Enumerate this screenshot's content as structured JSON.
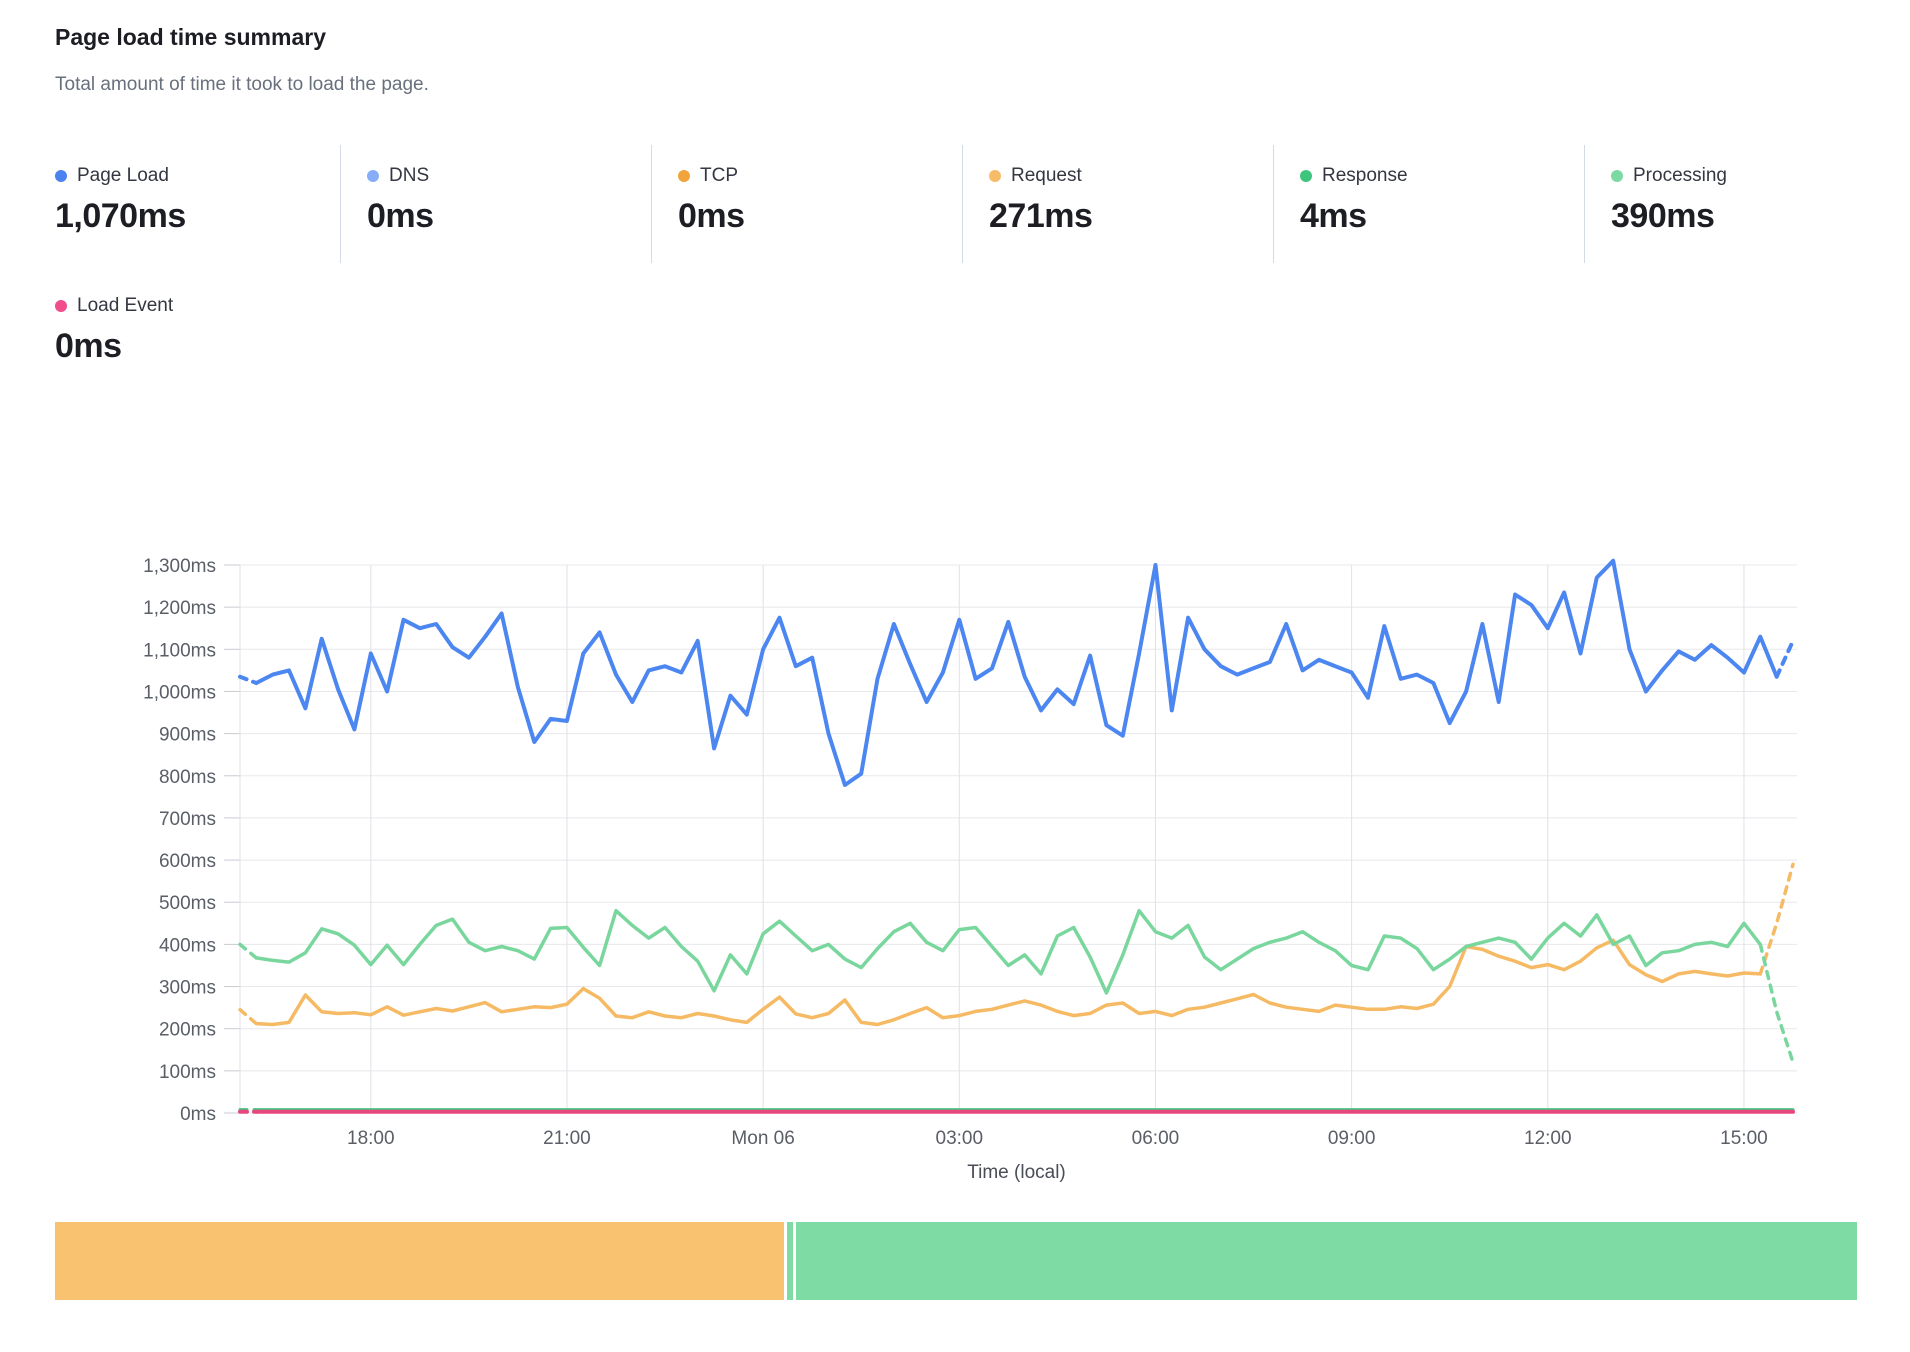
{
  "panel": {
    "title": "Page load time summary",
    "subtitle": "Total amount of time it took to load the page."
  },
  "metrics": [
    {
      "label": "Page Load",
      "value": "1,070ms",
      "color": "#4C81F0"
    },
    {
      "label": "DNS",
      "value": "0ms",
      "color": "#85AEF6"
    },
    {
      "label": "TCP",
      "value": "0ms",
      "color": "#F1A33C"
    },
    {
      "label": "Request",
      "value": "271ms",
      "color": "#F6BC68"
    },
    {
      "label": "Response",
      "value": "4ms",
      "color": "#3EC57D"
    },
    {
      "label": "Processing",
      "value": "390ms",
      "color": "#7BD9A1"
    },
    {
      "label": "Load Event",
      "value": "0ms",
      "color": "#EF4E8B"
    }
  ],
  "chart_data": {
    "type": "line",
    "title": "Page load time summary",
    "xlabel": "Time (local)",
    "ylabel": "",
    "ylim": [
      0,
      1300
    ],
    "ytick_step": 100,
    "ytick_labels": [
      "0ms",
      "100ms",
      "200ms",
      "300ms",
      "400ms",
      "500ms",
      "600ms",
      "700ms",
      "800ms",
      "900ms",
      "1,000ms",
      "1,100ms",
      "1,200ms",
      "1,300ms"
    ],
    "grid": true,
    "legend_position": "top",
    "points_interval_minutes": 15,
    "x_start_time": "Sun 16:00",
    "xticks": [
      {
        "label": "18:00",
        "index": 8
      },
      {
        "label": "21:00",
        "index": 20
      },
      {
        "label": "Mon 06",
        "index": 32
      },
      {
        "label": "03:00",
        "index": 44
      },
      {
        "label": "06:00",
        "index": 56
      },
      {
        "label": "09:00",
        "index": 68
      },
      {
        "label": "12:00",
        "index": 80
      },
      {
        "label": "15:00",
        "index": 92
      }
    ],
    "series": [
      {
        "name": "Request",
        "color": "#F5BA63",
        "width": 3.5,
        "lead_dash": 1,
        "tail_dash": 2,
        "values": [
          245,
          212,
          210,
          215,
          280,
          240,
          236,
          238,
          233,
          252,
          232,
          240,
          248,
          242,
          252,
          262,
          240,
          246,
          252,
          250,
          258,
          295,
          272,
          230,
          226,
          240,
          230,
          226,
          236,
          230,
          221,
          215,
          246,
          275,
          235,
          226,
          236,
          268,
          215,
          210,
          221,
          236,
          250,
          226,
          231,
          241,
          246,
          256,
          266,
          256,
          241,
          231,
          236,
          256,
          261,
          236,
          241,
          231,
          246,
          251,
          261,
          271,
          281,
          261,
          251,
          246,
          241,
          256,
          251,
          246,
          246,
          252,
          248,
          258,
          300,
          395,
          388,
          372,
          360,
          345,
          352,
          340,
          360,
          392,
          410,
          352,
          328,
          312,
          330,
          336,
          330,
          325,
          332,
          330,
          450,
          590
        ]
      },
      {
        "name": "Processing",
        "color": "#79D69D",
        "width": 3.5,
        "lead_dash": 1,
        "tail_dash": 2,
        "values": [
          400,
          368,
          362,
          358,
          380,
          437,
          425,
          398,
          352,
          398,
          352,
          400,
          445,
          460,
          405,
          385,
          395,
          385,
          365,
          438,
          440,
          393,
          350,
          480,
          445,
          415,
          440,
          395,
          360,
          290,
          375,
          330,
          425,
          455,
          420,
          385,
          400,
          365,
          345,
          390,
          430,
          450,
          405,
          385,
          435,
          440,
          395,
          350,
          375,
          330,
          420,
          440,
          370,
          285,
          375,
          480,
          430,
          415,
          445,
          370,
          340,
          365,
          390,
          405,
          415,
          430,
          405,
          385,
          350,
          340,
          420,
          415,
          390,
          340,
          365,
          395,
          405,
          415,
          405,
          365,
          415,
          450,
          420,
          470,
          400,
          420,
          350,
          380,
          385,
          400,
          405,
          395,
          450,
          400,
          240,
          120
        ]
      },
      {
        "name": "Response",
        "color": "#46C57E",
        "width": 3,
        "lead_dash": 1,
        "tail_dash": 0,
        "values_constant": 8
      },
      {
        "name": "Load Event",
        "color": "#E5477E",
        "width": 4,
        "lead_dash": 1,
        "tail_dash": 0,
        "values_constant": 3
      },
      {
        "name": "Page Load",
        "color": "#4C86F0",
        "width": 4,
        "lead_dash": 1,
        "tail_dash": 1,
        "values": [
          1035,
          1020,
          1040,
          1050,
          960,
          1125,
          1005,
          910,
          1090,
          1000,
          1170,
          1150,
          1160,
          1105,
          1080,
          1130,
          1185,
          1010,
          880,
          935,
          930,
          1090,
          1140,
          1040,
          975,
          1050,
          1060,
          1045,
          1120,
          865,
          990,
          945,
          1100,
          1175,
          1060,
          1080,
          900,
          778,
          805,
          1030,
          1160,
          1065,
          975,
          1045,
          1170,
          1030,
          1055,
          1165,
          1035,
          955,
          1005,
          970,
          1085,
          920,
          895,
          1090,
          1300,
          955,
          1175,
          1100,
          1060,
          1040,
          1055,
          1070,
          1160,
          1050,
          1075,
          1060,
          1045,
          985,
          1155,
          1030,
          1040,
          1020,
          925,
          1000,
          1160,
          975,
          1230,
          1205,
          1150,
          1235,
          1090,
          1270,
          1310,
          1100,
          1000,
          1050,
          1095,
          1075,
          1110,
          1080,
          1045,
          1130,
          1035,
          1120
        ]
      }
    ],
    "footer_bar": {
      "segments": [
        {
          "name": "request-phase",
          "color": "#F8C270",
          "width_frac": 0.4045
        },
        {
          "name": "divider-sliver",
          "color": "#7DDBA3",
          "width_frac": 0.0033
        },
        {
          "name": "processing-phase",
          "color": "#7DDBA3",
          "width_frac": 0.59
        }
      ]
    }
  }
}
